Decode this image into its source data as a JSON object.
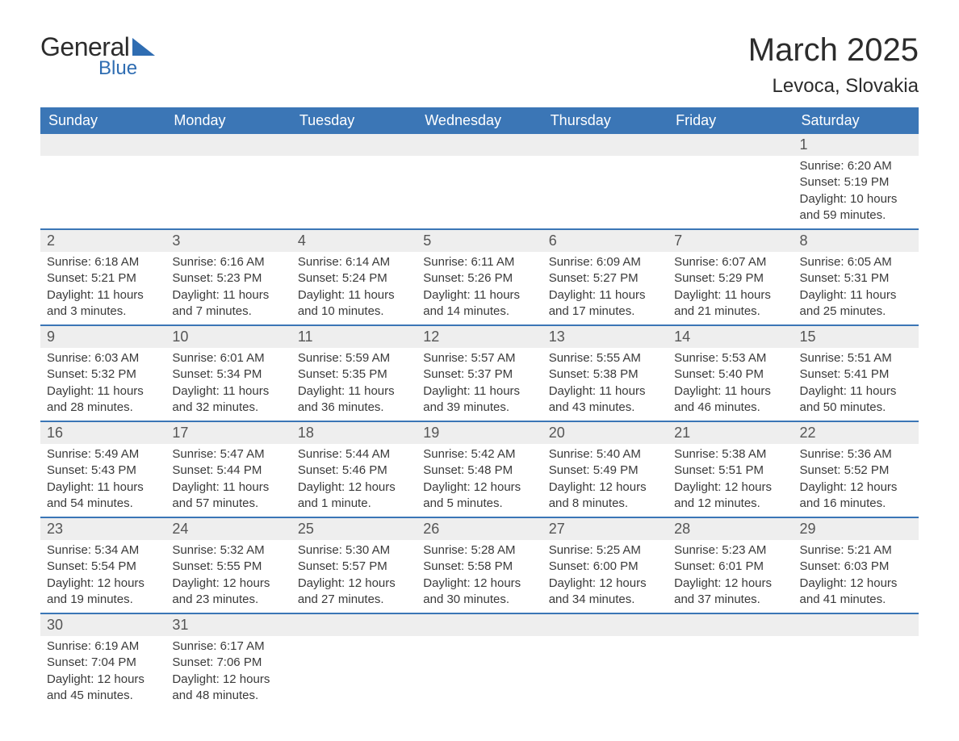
{
  "logo": {
    "general": "General",
    "blue": "Blue"
  },
  "title": "March 2025",
  "location": "Levoca, Slovakia",
  "colors": {
    "header_bg": "#3b76b6",
    "header_text": "#ffffff",
    "daynum_bg": "#eeeeee",
    "row_border": "#3b76b6",
    "body_text": "#3a3a3a",
    "logo_accent": "#2f6db2"
  },
  "fonts": {
    "title_size_pt": 30,
    "location_size_pt": 18,
    "dayhead_size_pt": 14,
    "daynum_size_pt": 14,
    "body_size_pt": 11
  },
  "weekdays": [
    "Sunday",
    "Monday",
    "Tuesday",
    "Wednesday",
    "Thursday",
    "Friday",
    "Saturday"
  ],
  "weeks": [
    [
      null,
      null,
      null,
      null,
      null,
      null,
      {
        "n": "1",
        "sr": "Sunrise: 6:20 AM",
        "ss": "Sunset: 5:19 PM",
        "d1": "Daylight: 10 hours",
        "d2": "and 59 minutes."
      }
    ],
    [
      {
        "n": "2",
        "sr": "Sunrise: 6:18 AM",
        "ss": "Sunset: 5:21 PM",
        "d1": "Daylight: 11 hours",
        "d2": "and 3 minutes."
      },
      {
        "n": "3",
        "sr": "Sunrise: 6:16 AM",
        "ss": "Sunset: 5:23 PM",
        "d1": "Daylight: 11 hours",
        "d2": "and 7 minutes."
      },
      {
        "n": "4",
        "sr": "Sunrise: 6:14 AM",
        "ss": "Sunset: 5:24 PM",
        "d1": "Daylight: 11 hours",
        "d2": "and 10 minutes."
      },
      {
        "n": "5",
        "sr": "Sunrise: 6:11 AM",
        "ss": "Sunset: 5:26 PM",
        "d1": "Daylight: 11 hours",
        "d2": "and 14 minutes."
      },
      {
        "n": "6",
        "sr": "Sunrise: 6:09 AM",
        "ss": "Sunset: 5:27 PM",
        "d1": "Daylight: 11 hours",
        "d2": "and 17 minutes."
      },
      {
        "n": "7",
        "sr": "Sunrise: 6:07 AM",
        "ss": "Sunset: 5:29 PM",
        "d1": "Daylight: 11 hours",
        "d2": "and 21 minutes."
      },
      {
        "n": "8",
        "sr": "Sunrise: 6:05 AM",
        "ss": "Sunset: 5:31 PM",
        "d1": "Daylight: 11 hours",
        "d2": "and 25 minutes."
      }
    ],
    [
      {
        "n": "9",
        "sr": "Sunrise: 6:03 AM",
        "ss": "Sunset: 5:32 PM",
        "d1": "Daylight: 11 hours",
        "d2": "and 28 minutes."
      },
      {
        "n": "10",
        "sr": "Sunrise: 6:01 AM",
        "ss": "Sunset: 5:34 PM",
        "d1": "Daylight: 11 hours",
        "d2": "and 32 minutes."
      },
      {
        "n": "11",
        "sr": "Sunrise: 5:59 AM",
        "ss": "Sunset: 5:35 PM",
        "d1": "Daylight: 11 hours",
        "d2": "and 36 minutes."
      },
      {
        "n": "12",
        "sr": "Sunrise: 5:57 AM",
        "ss": "Sunset: 5:37 PM",
        "d1": "Daylight: 11 hours",
        "d2": "and 39 minutes."
      },
      {
        "n": "13",
        "sr": "Sunrise: 5:55 AM",
        "ss": "Sunset: 5:38 PM",
        "d1": "Daylight: 11 hours",
        "d2": "and 43 minutes."
      },
      {
        "n": "14",
        "sr": "Sunrise: 5:53 AM",
        "ss": "Sunset: 5:40 PM",
        "d1": "Daylight: 11 hours",
        "d2": "and 46 minutes."
      },
      {
        "n": "15",
        "sr": "Sunrise: 5:51 AM",
        "ss": "Sunset: 5:41 PM",
        "d1": "Daylight: 11 hours",
        "d2": "and 50 minutes."
      }
    ],
    [
      {
        "n": "16",
        "sr": "Sunrise: 5:49 AM",
        "ss": "Sunset: 5:43 PM",
        "d1": "Daylight: 11 hours",
        "d2": "and 54 minutes."
      },
      {
        "n": "17",
        "sr": "Sunrise: 5:47 AM",
        "ss": "Sunset: 5:44 PM",
        "d1": "Daylight: 11 hours",
        "d2": "and 57 minutes."
      },
      {
        "n": "18",
        "sr": "Sunrise: 5:44 AM",
        "ss": "Sunset: 5:46 PM",
        "d1": "Daylight: 12 hours",
        "d2": "and 1 minute."
      },
      {
        "n": "19",
        "sr": "Sunrise: 5:42 AM",
        "ss": "Sunset: 5:48 PM",
        "d1": "Daylight: 12 hours",
        "d2": "and 5 minutes."
      },
      {
        "n": "20",
        "sr": "Sunrise: 5:40 AM",
        "ss": "Sunset: 5:49 PM",
        "d1": "Daylight: 12 hours",
        "d2": "and 8 minutes."
      },
      {
        "n": "21",
        "sr": "Sunrise: 5:38 AM",
        "ss": "Sunset: 5:51 PM",
        "d1": "Daylight: 12 hours",
        "d2": "and 12 minutes."
      },
      {
        "n": "22",
        "sr": "Sunrise: 5:36 AM",
        "ss": "Sunset: 5:52 PM",
        "d1": "Daylight: 12 hours",
        "d2": "and 16 minutes."
      }
    ],
    [
      {
        "n": "23",
        "sr": "Sunrise: 5:34 AM",
        "ss": "Sunset: 5:54 PM",
        "d1": "Daylight: 12 hours",
        "d2": "and 19 minutes."
      },
      {
        "n": "24",
        "sr": "Sunrise: 5:32 AM",
        "ss": "Sunset: 5:55 PM",
        "d1": "Daylight: 12 hours",
        "d2": "and 23 minutes."
      },
      {
        "n": "25",
        "sr": "Sunrise: 5:30 AM",
        "ss": "Sunset: 5:57 PM",
        "d1": "Daylight: 12 hours",
        "d2": "and 27 minutes."
      },
      {
        "n": "26",
        "sr": "Sunrise: 5:28 AM",
        "ss": "Sunset: 5:58 PM",
        "d1": "Daylight: 12 hours",
        "d2": "and 30 minutes."
      },
      {
        "n": "27",
        "sr": "Sunrise: 5:25 AM",
        "ss": "Sunset: 6:00 PM",
        "d1": "Daylight: 12 hours",
        "d2": "and 34 minutes."
      },
      {
        "n": "28",
        "sr": "Sunrise: 5:23 AM",
        "ss": "Sunset: 6:01 PM",
        "d1": "Daylight: 12 hours",
        "d2": "and 37 minutes."
      },
      {
        "n": "29",
        "sr": "Sunrise: 5:21 AM",
        "ss": "Sunset: 6:03 PM",
        "d1": "Daylight: 12 hours",
        "d2": "and 41 minutes."
      }
    ],
    [
      {
        "n": "30",
        "sr": "Sunrise: 6:19 AM",
        "ss": "Sunset: 7:04 PM",
        "d1": "Daylight: 12 hours",
        "d2": "and 45 minutes."
      },
      {
        "n": "31",
        "sr": "Sunrise: 6:17 AM",
        "ss": "Sunset: 7:06 PM",
        "d1": "Daylight: 12 hours",
        "d2": "and 48 minutes."
      },
      null,
      null,
      null,
      null,
      null
    ]
  ]
}
